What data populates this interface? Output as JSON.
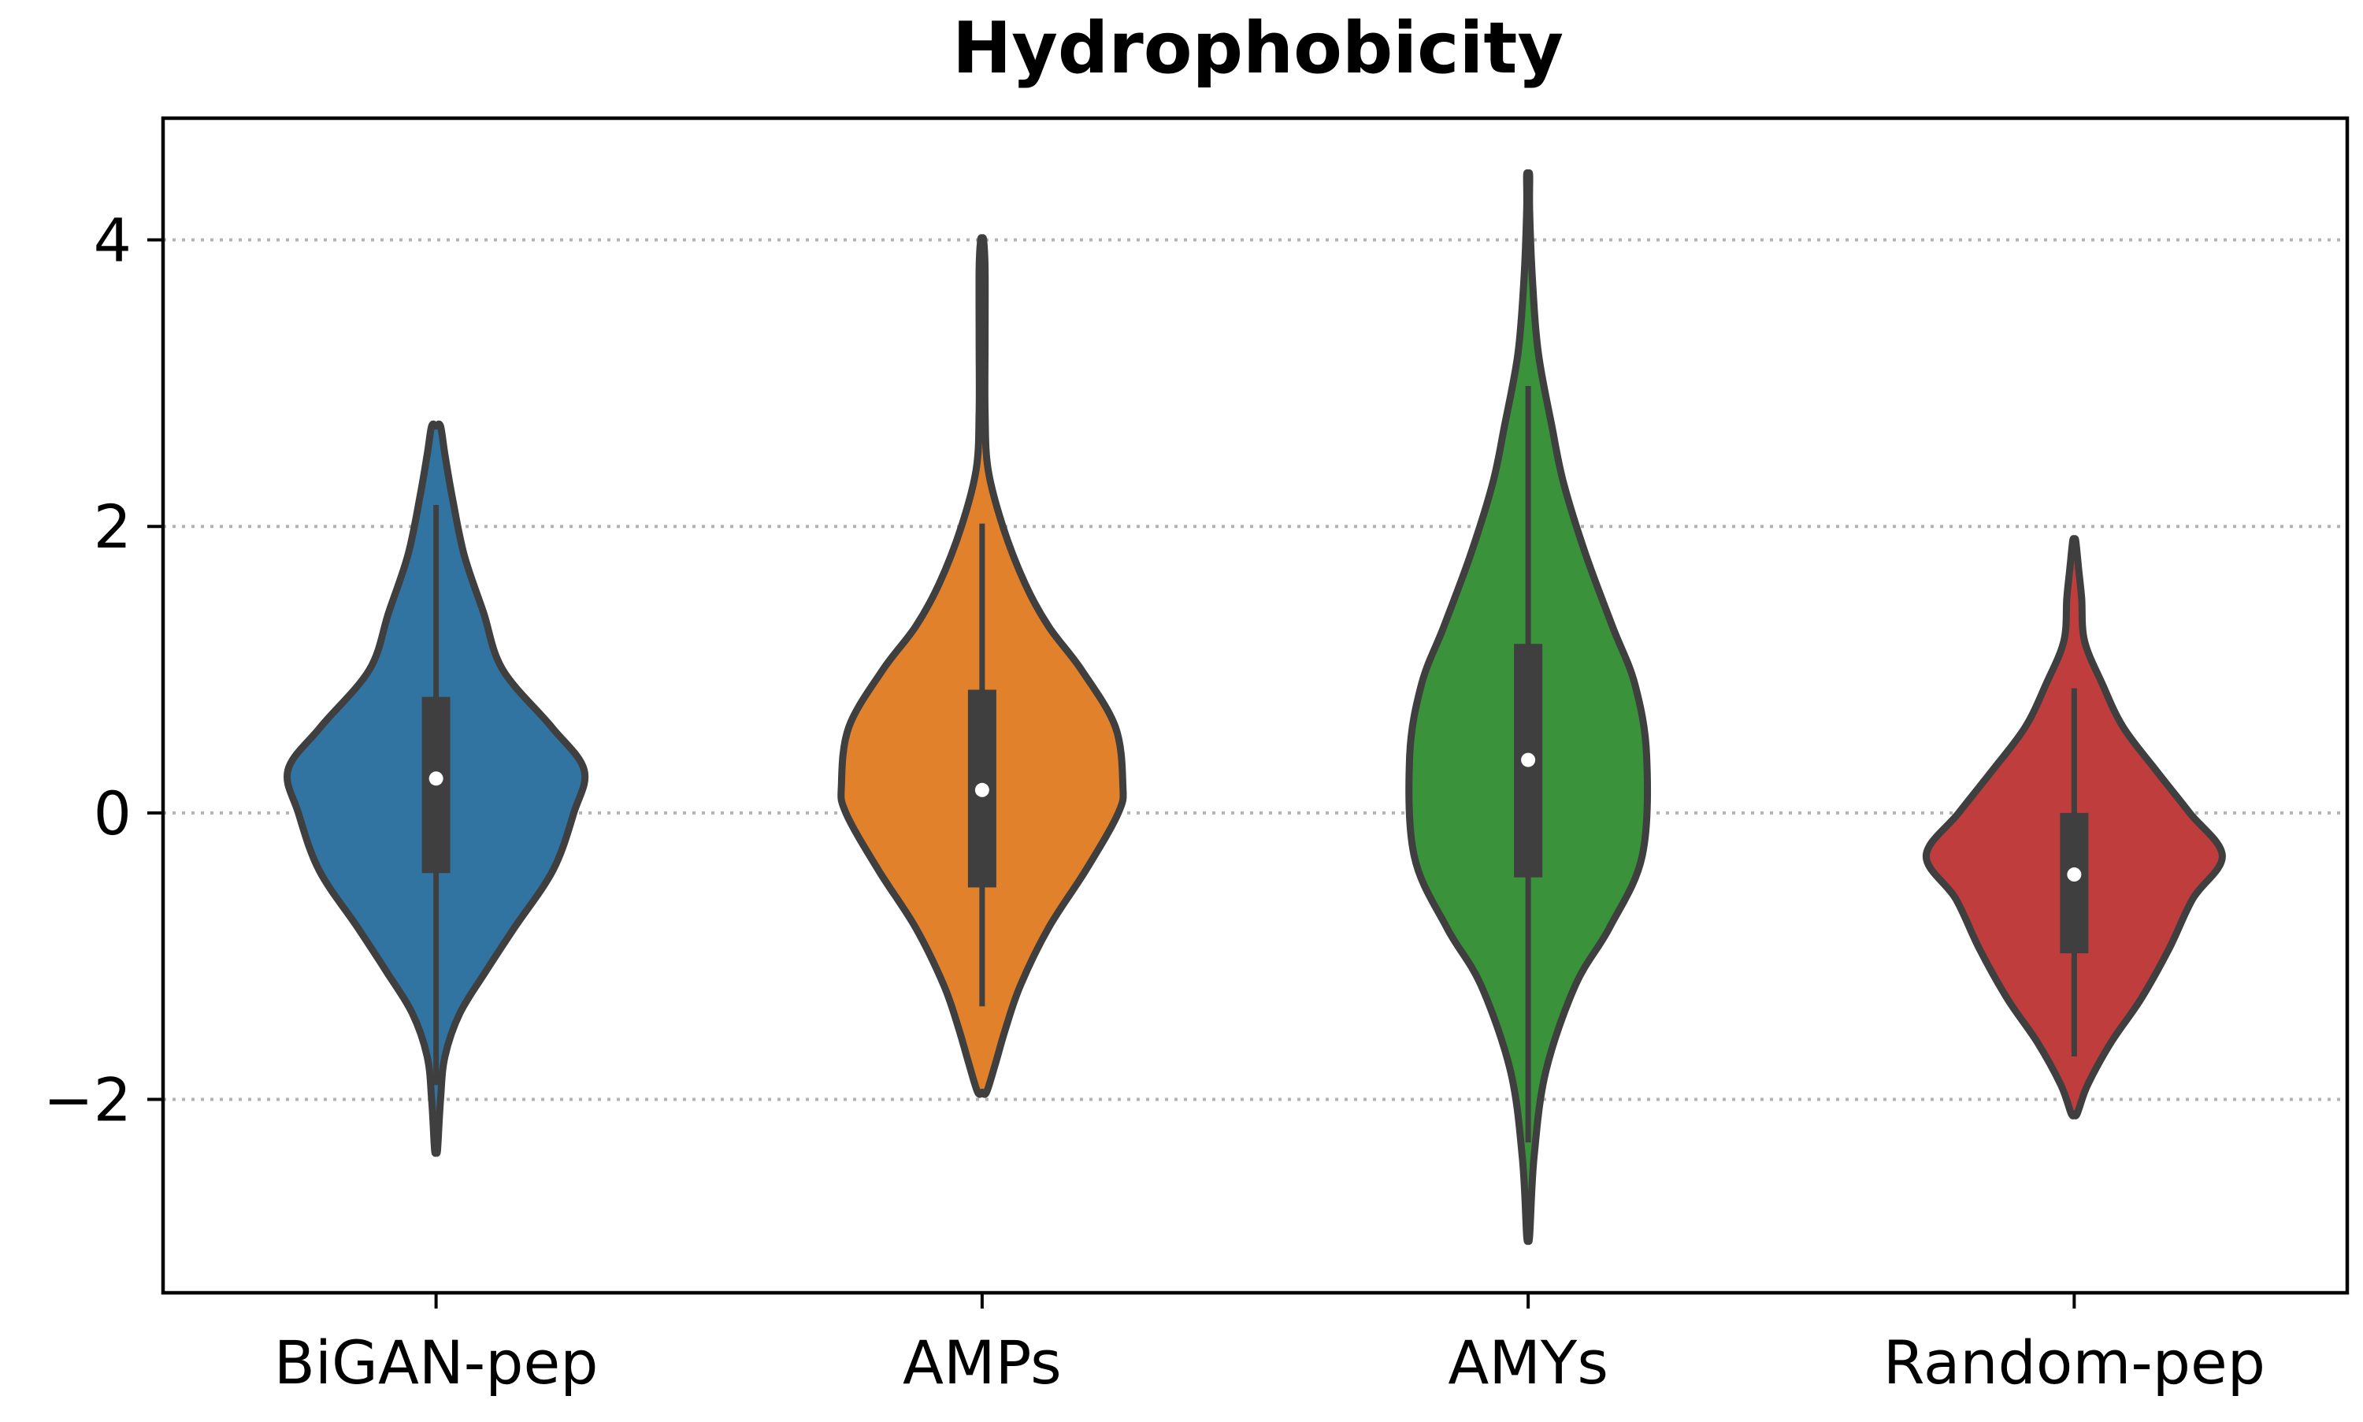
{
  "chart_data": {
    "type": "violin",
    "title": "Hydrophobicity",
    "xlabel": "",
    "ylabel": "",
    "ylim": [
      -3.35,
      4.85
    ],
    "yticks": [
      -2,
      0,
      2,
      4
    ],
    "ytick_labels": [
      "−2",
      "0",
      "2",
      "4"
    ],
    "grid": "horizontal dotted at y ticks",
    "categories": [
      "BiGAN-pep",
      "AMPs",
      "AMYs",
      "Random-pep"
    ],
    "series": [
      {
        "category": "BiGAN-pep",
        "color": "#3274a1",
        "median": 0.24,
        "q1": -0.42,
        "q3": 0.81,
        "whisker_low": -1.9,
        "whisker_high": 2.15,
        "density": [
          [
            -2.35,
            0.01
          ],
          [
            -2.0,
            0.03
          ],
          [
            -1.7,
            0.06
          ],
          [
            -1.4,
            0.16
          ],
          [
            -1.1,
            0.34
          ],
          [
            -0.8,
            0.53
          ],
          [
            -0.4,
            0.79
          ],
          [
            0.0,
            0.93
          ],
          [
            0.3,
            1.0
          ],
          [
            0.6,
            0.78
          ],
          [
            1.0,
            0.45
          ],
          [
            1.4,
            0.32
          ],
          [
            1.8,
            0.19
          ],
          [
            2.2,
            0.11
          ],
          [
            2.5,
            0.06
          ],
          [
            2.7,
            0.03
          ]
        ]
      },
      {
        "category": "AMPs",
        "color": "#e1812c",
        "median": 0.16,
        "q1": -0.52,
        "q3": 0.86,
        "whisker_low": -1.35,
        "whisker_high": 2.02,
        "density": [
          [
            -1.95,
            0.03
          ],
          [
            -1.75,
            0.09
          ],
          [
            -1.5,
            0.16
          ],
          [
            -1.2,
            0.26
          ],
          [
            -0.8,
            0.45
          ],
          [
            -0.4,
            0.7
          ],
          [
            0.0,
            0.92
          ],
          [
            0.2,
            0.95
          ],
          [
            0.6,
            0.9
          ],
          [
            1.0,
            0.67
          ],
          [
            1.3,
            0.45
          ],
          [
            1.6,
            0.29
          ],
          [
            2.0,
            0.14
          ],
          [
            2.4,
            0.04
          ],
          [
            2.8,
            0.02
          ],
          [
            3.3,
            0.02
          ],
          [
            3.8,
            0.02
          ],
          [
            4.0,
            0.01
          ]
        ]
      },
      {
        "category": "AMYs",
        "color": "#3a923a",
        "median": 0.37,
        "q1": -0.45,
        "q3": 1.18,
        "whisker_low": -2.3,
        "whisker_high": 2.98,
        "density": [
          [
            -2.95,
            0.01
          ],
          [
            -2.4,
            0.04
          ],
          [
            -1.8,
            0.12
          ],
          [
            -1.2,
            0.32
          ],
          [
            -0.8,
            0.55
          ],
          [
            -0.3,
            0.77
          ],
          [
            0.4,
            0.8
          ],
          [
            0.9,
            0.72
          ],
          [
            1.3,
            0.57
          ],
          [
            1.8,
            0.39
          ],
          [
            2.3,
            0.24
          ],
          [
            2.7,
            0.16
          ],
          [
            3.2,
            0.07
          ],
          [
            3.7,
            0.03
          ],
          [
            4.2,
            0.01
          ],
          [
            4.45,
            0.01
          ]
        ]
      },
      {
        "category": "Random-pep",
        "color": "#c03d3e",
        "median": -0.43,
        "q1": -0.98,
        "q3": 0.0,
        "whisker_low": -1.7,
        "whisker_high": 0.87,
        "density": [
          [
            -2.1,
            0.02
          ],
          [
            -1.9,
            0.09
          ],
          [
            -1.6,
            0.25
          ],
          [
            -1.3,
            0.45
          ],
          [
            -0.95,
            0.64
          ],
          [
            -0.6,
            0.8
          ],
          [
            -0.3,
            1.0
          ],
          [
            0.0,
            0.78
          ],
          [
            0.3,
            0.55
          ],
          [
            0.6,
            0.33
          ],
          [
            0.9,
            0.19
          ],
          [
            1.2,
            0.07
          ],
          [
            1.5,
            0.05
          ],
          [
            1.7,
            0.03
          ],
          [
            1.9,
            0.01
          ]
        ]
      }
    ]
  }
}
